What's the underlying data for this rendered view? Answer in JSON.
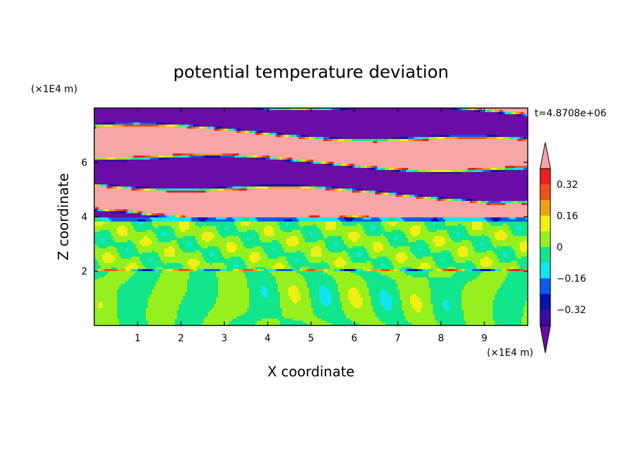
{
  "chart_data": {
    "type": "heatmap",
    "title": "potential temperature deviation",
    "xlabel": "X coordinate",
    "ylabel": "Z coordinate",
    "x_unit_label": "(×1E4 m)",
    "y_unit_label": "(×1E4 m)",
    "time_label": "t=4.8708e+06",
    "xlim": [
      0,
      10
    ],
    "ylim": [
      0,
      8
    ],
    "x_ticks": [
      1,
      2,
      3,
      4,
      5,
      6,
      7,
      8,
      9
    ],
    "y_ticks": [
      2,
      4,
      6
    ],
    "colorbar": {
      "levels": [
        -0.4,
        -0.32,
        -0.24,
        -0.16,
        -0.08,
        0,
        0.08,
        0.16,
        0.24,
        0.32,
        0.4
      ],
      "tick_labels": [
        "0.32",
        "0.16",
        "0",
        "−0.16",
        "−0.32"
      ],
      "tick_values": [
        0.32,
        0.16,
        0,
        -0.16,
        -0.32
      ],
      "colors": [
        "#6a0ca6",
        "#3a0ca6",
        "#0a10b0",
        "#0a5af0",
        "#10e6f0",
        "#12e68c",
        "#96f01e",
        "#f0f014",
        "#f0a014",
        "#f05014",
        "#f01e1e",
        "#f7a6a6"
      ],
      "extend": "both"
    },
    "layers": [
      {
        "z_range": [
          0,
          2.0
        ],
        "pattern": "convective cells",
        "dominant_value_range": [
          -0.08,
          0.08
        ]
      },
      {
        "z_range": [
          2.0,
          4.0
        ],
        "pattern": "patchy mixed layer",
        "dominant_value_range": [
          -0.08,
          0.08
        ]
      },
      {
        "z_range": [
          4.0,
          8.0
        ],
        "pattern": "alternating sloped bands",
        "dominant_value_range": [
          -0.4,
          0.4
        ]
      }
    ]
  }
}
